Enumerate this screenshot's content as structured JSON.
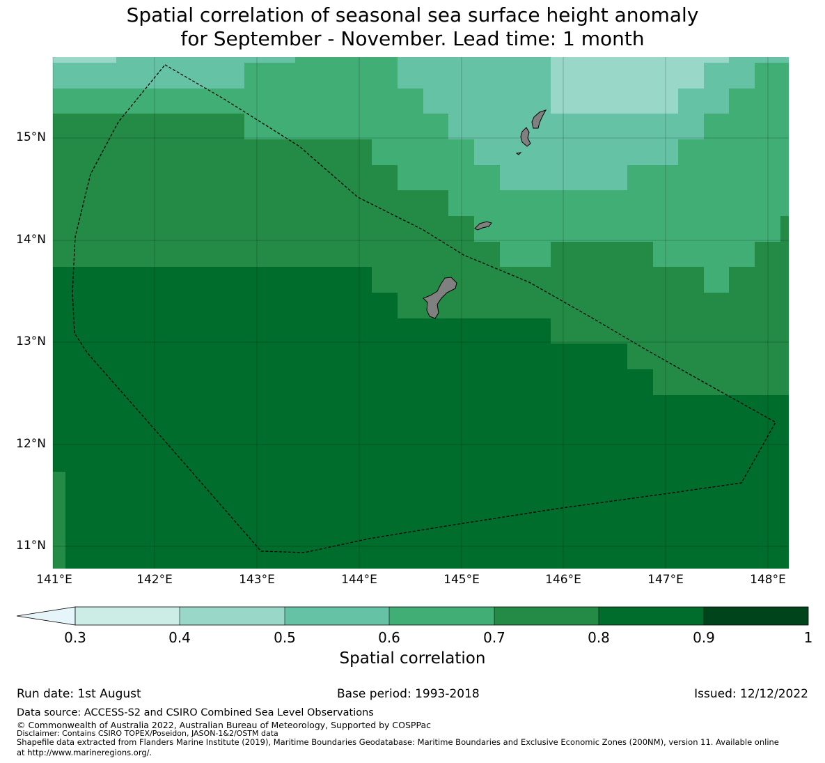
{
  "title": {
    "line1": "Spatial correlation of seasonal sea surface height anomaly",
    "line2": "for September - November. Lead time: 1 month"
  },
  "map": {
    "lat_ticks": [
      "15°N",
      "14°N",
      "13°N",
      "12°N",
      "11°N"
    ],
    "lon_ticks": [
      "141°E",
      "142°E",
      "143°E",
      "144°E",
      "145°E",
      "146°E",
      "147°E",
      "148°E"
    ],
    "land_color": "#808080",
    "boundary_style": "dashed"
  },
  "colorbar": {
    "ticks": [
      "0.3",
      "0.4",
      "0.5",
      "0.6",
      "0.7",
      "0.8",
      "0.9",
      "1"
    ],
    "colors": [
      "#e5f5f9",
      "#ccece6",
      "#99d8c9",
      "#66c2a4",
      "#41ae76",
      "#238b45",
      "#006d2c",
      "#00441b"
    ],
    "label": "Spatial correlation"
  },
  "footer": {
    "run_date": "Run date: 1st August",
    "base_period": "Base period: 1993-2018",
    "issued": "Issued: 12/12/2022",
    "data_source": "Data source: ACCESS-S2 and CSIRO Combined Sea Level Observations",
    "copyright": "© Commonwealth of Australia 2022, Australian Bureau of Meteorology, Supported by COSPPac",
    "disclaimer": "Disclaimer: Contains CSIRO TOPEX/Poseidon, JASON-1&2/OSTM data",
    "shapefile_line1": "Shapefile data extracted from Flanders Marine Institute (2019), Maritime Boundaries Geodatabase: Maritime Boundaries and Exclusive Economic Zones (200NM), version 11. Available online",
    "shapefile_line2": "at http://www.marineregions.org/."
  }
}
